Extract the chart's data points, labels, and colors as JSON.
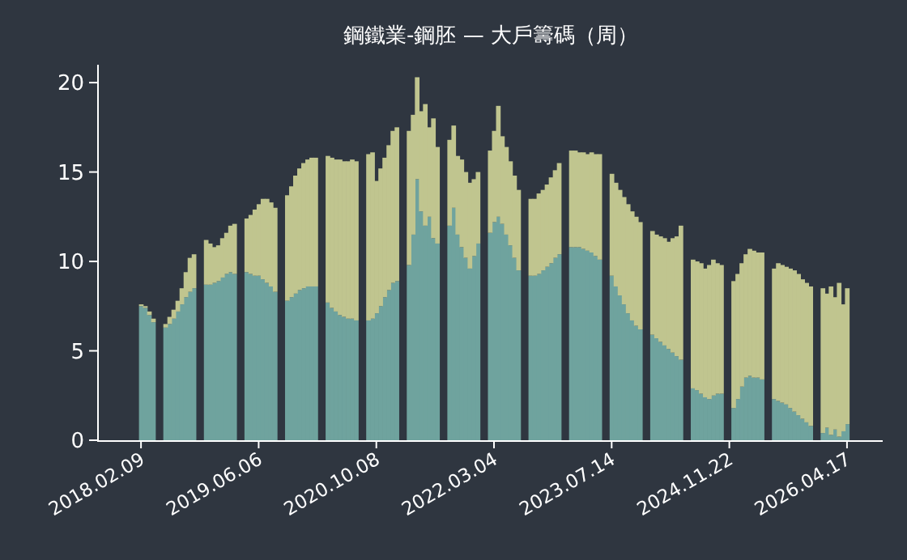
{
  "chart_data": {
    "type": "bar",
    "title": "鋼鐵業-鋼胚 — 大戶籌碼（周）",
    "stacked": true,
    "categories": [
      "2018.02.09",
      null,
      null,
      null,
      null,
      null,
      null,
      null,
      null,
      null,
      null,
      null,
      null,
      null,
      null,
      null,
      null,
      null,
      null,
      null,
      null,
      null,
      null,
      null,
      null,
      null,
      null,
      null,
      null,
      "2019.06.06",
      null,
      null,
      null,
      null,
      null,
      null,
      null,
      null,
      null,
      null,
      null,
      null,
      null,
      null,
      null,
      null,
      null,
      null,
      null,
      null,
      null,
      null,
      null,
      null,
      null,
      null,
      null,
      null,
      "2020.10.08",
      null,
      null,
      null,
      null,
      null,
      null,
      null,
      null,
      null,
      null,
      null,
      null,
      null,
      null,
      null,
      null,
      null,
      null,
      null,
      null,
      null,
      null,
      null,
      null,
      null,
      null,
      null,
      null,
      "2022.03.04",
      null,
      null,
      null,
      null,
      null,
      null,
      null,
      null,
      null,
      null,
      null,
      null,
      null,
      null,
      null,
      null,
      null,
      null,
      null,
      null,
      null,
      null,
      null,
      null,
      null,
      null,
      null,
      null,
      "2023.07.14",
      null,
      null,
      null,
      null,
      null,
      null,
      null,
      null,
      null,
      null,
      null,
      null,
      null,
      null,
      null,
      null,
      null,
      null,
      null,
      null,
      null,
      null,
      null,
      null,
      null,
      null,
      null,
      null,
      "2024.11.22",
      null,
      null,
      null,
      null,
      null,
      null,
      null,
      null,
      null,
      null,
      null,
      null,
      null,
      null,
      null,
      null,
      null,
      null,
      null,
      null,
      null,
      null,
      null,
      null,
      null,
      null,
      null,
      null,
      "2026.04.17"
    ],
    "series": [
      {
        "color": "#6fa39e",
        "values": [
          7.5,
          7.4,
          7.0,
          6.6,
          null,
          null,
          6.3,
          6.5,
          6.8,
          7.2,
          7.6,
          8.0,
          8.3,
          8.5,
          null,
          null,
          8.7,
          8.7,
          8.8,
          8.9,
          9.1,
          9.3,
          9.4,
          9.3,
          null,
          null,
          9.4,
          9.3,
          9.2,
          9.2,
          9.0,
          8.8,
          8.6,
          8.3,
          null,
          null,
          7.8,
          8.0,
          8.2,
          8.4,
          8.5,
          8.6,
          8.6,
          8.6,
          null,
          null,
          7.7,
          7.4,
          7.2,
          7.0,
          6.9,
          6.8,
          6.8,
          6.7,
          null,
          null,
          6.7,
          6.8,
          7.1,
          7.5,
          8.0,
          8.4,
          8.8,
          8.9,
          null,
          null,
          9.8,
          11.5,
          14.6,
          12.8,
          12.0,
          12.5,
          11.3,
          11.0,
          null,
          null,
          12.0,
          13.0,
          11.5,
          10.8,
          10.2,
          9.6,
          10.3,
          11.0,
          null,
          null,
          11.6,
          12.2,
          12.5,
          12.1,
          11.5,
          10.9,
          10.2,
          9.5,
          null,
          null,
          9.2,
          9.2,
          9.3,
          9.5,
          9.7,
          9.9,
          10.2,
          10.4,
          null,
          null,
          10.8,
          10.8,
          10.8,
          10.7,
          10.6,
          10.5,
          10.3,
          10.1,
          null,
          null,
          9.2,
          8.6,
          8.1,
          7.6,
          7.1,
          6.7,
          6.4,
          6.2,
          null,
          null,
          5.9,
          5.7,
          5.5,
          5.3,
          5.1,
          4.9,
          4.7,
          4.5,
          null,
          null,
          2.9,
          2.8,
          2.6,
          2.4,
          2.3,
          2.5,
          2.6,
          2.6,
          null,
          null,
          1.8,
          2.3,
          3.0,
          3.5,
          3.6,
          3.5,
          3.5,
          3.4,
          null,
          null,
          2.3,
          2.2,
          2.1,
          2.0,
          1.8,
          1.6,
          1.4,
          1.2,
          1.0,
          0.8,
          null,
          null,
          0.4,
          0.7,
          0.3,
          0.6,
          0.2,
          0.5,
          0.9
        ]
      },
      {
        "color": "#c0c58f",
        "values": [
          0.1,
          0.1,
          0.2,
          0.2,
          null,
          null,
          0.2,
          0.4,
          0.5,
          0.6,
          0.9,
          1.4,
          1.9,
          1.9,
          null,
          null,
          2.5,
          2.3,
          2.0,
          2.0,
          2.2,
          2.3,
          2.6,
          2.8,
          null,
          null,
          3.0,
          3.3,
          3.7,
          4.0,
          4.5,
          4.7,
          4.7,
          4.7,
          null,
          null,
          5.9,
          6.2,
          6.6,
          6.8,
          7.0,
          7.1,
          7.2,
          7.2,
          null,
          null,
          8.2,
          8.4,
          8.5,
          8.7,
          8.7,
          8.8,
          8.9,
          8.9,
          null,
          null,
          9.3,
          9.3,
          7.4,
          7.7,
          7.8,
          8.1,
          8.5,
          8.6,
          null,
          null,
          7.5,
          6.7,
          5.7,
          5.6,
          6.8,
          5.0,
          6.7,
          5.4,
          null,
          null,
          4.8,
          4.6,
          4.4,
          4.9,
          4.8,
          4.8,
          4.3,
          4.0,
          null,
          null,
          4.6,
          5.1,
          6.2,
          4.9,
          4.9,
          4.7,
          4.6,
          4.5,
          null,
          null,
          4.3,
          4.3,
          4.5,
          4.5,
          4.6,
          4.8,
          4.9,
          5.1,
          null,
          null,
          5.4,
          5.4,
          5.3,
          5.4,
          5.4,
          5.6,
          5.7,
          5.9,
          null,
          null,
          5.7,
          5.8,
          5.9,
          6.0,
          6.1,
          6.1,
          6.1,
          6.0,
          null,
          null,
          5.8,
          5.8,
          5.9,
          6.0,
          6.0,
          6.4,
          6.7,
          7.5,
          null,
          null,
          7.2,
          7.2,
          7.3,
          7.2,
          7.5,
          7.6,
          7.3,
          7.2,
          null,
          null,
          7.1,
          7.0,
          6.9,
          6.9,
          7.1,
          7.1,
          7.0,
          7.1,
          null,
          null,
          7.3,
          7.7,
          7.7,
          7.7,
          7.8,
          7.9,
          7.9,
          7.8,
          7.8,
          7.8,
          null,
          null,
          8.1,
          7.5,
          8.3,
          7.4,
          8.6,
          7.1,
          7.6
        ]
      }
    ],
    "ylim": [
      0,
      21
    ],
    "yticks": [
      0,
      5,
      10,
      15,
      20
    ]
  }
}
